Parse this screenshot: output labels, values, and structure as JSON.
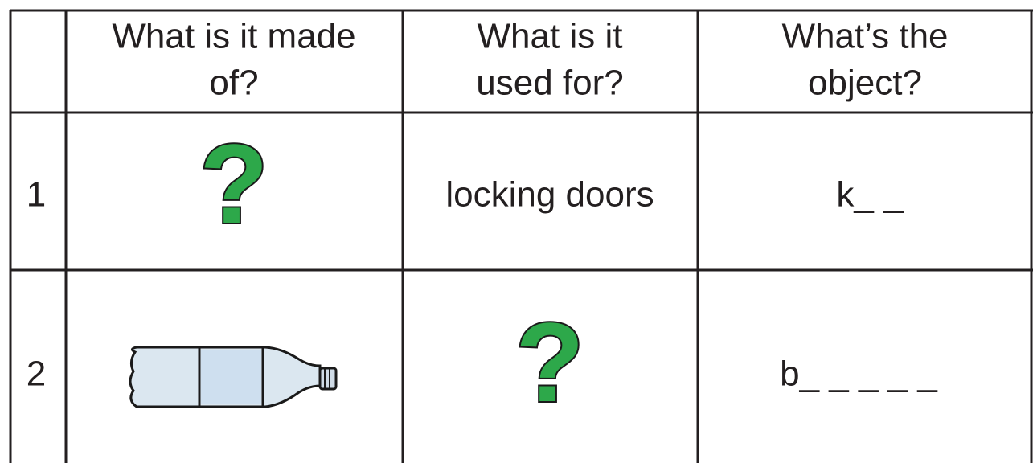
{
  "table": {
    "header": [
      [],
      [
        "What is it made",
        "of?"
      ],
      [
        "What is it",
        "used for?"
      ],
      [
        "What’s the",
        "object?"
      ]
    ],
    "rows": [
      [
        "1",
        "?",
        "locking doors",
        "k_ _"
      ],
      [
        "2",
        null,
        "?",
        "b_ _ _ _ _"
      ]
    ]
  }
}
